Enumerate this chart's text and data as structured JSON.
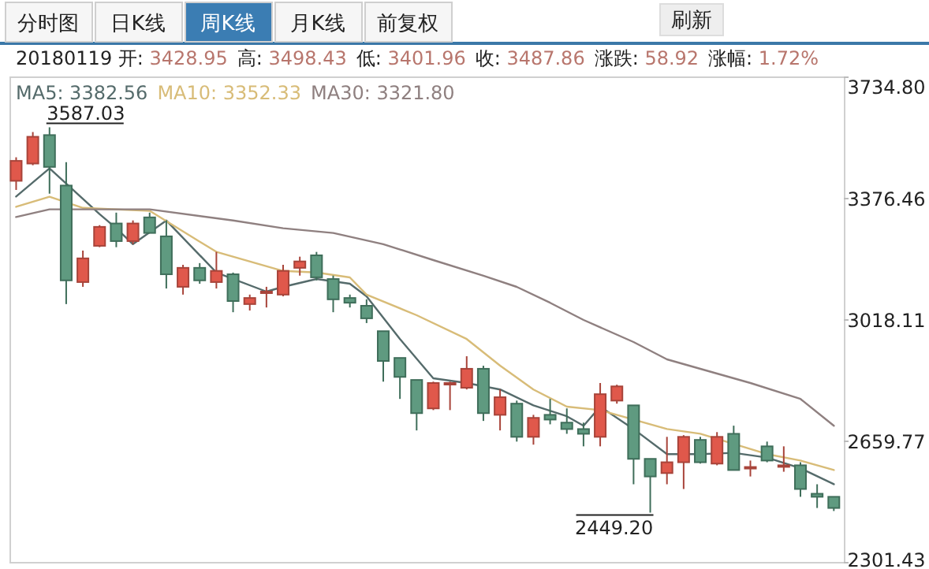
{
  "chart_data": [
    {
      "type": "other",
      "annotations": [
        "分时图",
        "日K线",
        "周K线",
        "月K线",
        "前复权",
        "刷新"
      ]
    },
    {
      "type": "candlestick",
      "categories": [
        null,
        null,
        null,
        null,
        null,
        null,
        null,
        null,
        null,
        null,
        null,
        null,
        null,
        null,
        null,
        null,
        null,
        null,
        null,
        null,
        null,
        null,
        null,
        null,
        null,
        null,
        null,
        null,
        null,
        null,
        null,
        null,
        null,
        null,
        null,
        null,
        null,
        null,
        null,
        null,
        null,
        null,
        null,
        null,
        null,
        null,
        null,
        null,
        null,
        null
      ],
      "ohlc": [
        [
          3428.95,
          3498.43,
          3401.96,
          3487.86
        ],
        [
          3480,
          3573,
          3475,
          3559
        ],
        [
          3564,
          3587.03,
          3391,
          3470
        ],
        [
          3415,
          3484,
          3065,
          3135
        ],
        [
          3130,
          3223,
          3116,
          3200
        ],
        [
          3237,
          3298,
          3233,
          3293
        ],
        [
          3303,
          3335,
          3233,
          3251
        ],
        [
          3251,
          3312,
          3242,
          3303
        ],
        [
          3321,
          3335,
          3275,
          3275
        ],
        [
          3265,
          3312,
          3111,
          3153
        ],
        [
          3116,
          3181,
          3093,
          3172
        ],
        [
          3172,
          3186,
          3125,
          3135
        ],
        [
          3130,
          3219,
          3111,
          3163
        ],
        [
          3153,
          3158,
          3041,
          3074
        ],
        [
          3065,
          3093,
          3046,
          3083
        ],
        [
          3102,
          3116,
          3055,
          3102
        ],
        [
          3093,
          3181,
          3088,
          3163
        ],
        [
          3172,
          3205,
          3149,
          3191
        ],
        [
          3209,
          3219,
          3135,
          3144
        ],
        [
          3139,
          3149,
          3041,
          3079
        ],
        [
          3083,
          3093,
          3055,
          3069
        ],
        [
          3060,
          3079,
          3009,
          3023
        ],
        [
          2985,
          2985,
          2836,
          2897
        ],
        [
          2906,
          2906,
          2785,
          2850
        ],
        [
          2841,
          2841,
          2692,
          2743
        ],
        [
          2757,
          2836,
          2752,
          2832
        ],
        [
          2832,
          2836,
          2752,
          2832
        ],
        [
          2818,
          2911,
          2813,
          2874
        ],
        [
          2874,
          2883,
          2720,
          2743
        ],
        [
          2738,
          2813,
          2692,
          2790
        ],
        [
          2771,
          2780,
          2659,
          2673
        ],
        [
          2673,
          2738,
          2650,
          2729
        ],
        [
          2738,
          2785,
          2710,
          2724
        ],
        [
          2715,
          2757,
          2682,
          2696
        ],
        [
          2696,
          2715,
          2645,
          2682
        ],
        [
          2673,
          2832,
          2645,
          2799
        ],
        [
          2780,
          2827,
          2771,
          2822
        ],
        [
          2766,
          2766,
          2533,
          2608
        ],
        [
          2608,
          2608,
          2449.2,
          2556
        ],
        [
          2566,
          2673,
          2533,
          2598
        ],
        [
          2598,
          2678,
          2519,
          2673
        ],
        [
          2664,
          2673,
          2594,
          2598
        ],
        [
          2594,
          2687,
          2589,
          2673
        ],
        [
          2682,
          2706,
          2575,
          2575
        ],
        [
          2584,
          2603,
          2556,
          2584
        ],
        [
          2645,
          2659,
          2598,
          2603
        ],
        [
          2589,
          2645,
          2570,
          2589
        ],
        [
          2589,
          2598,
          2496,
          2519
        ],
        [
          2505,
          2533,
          2463,
          2496
        ],
        [
          2496,
          2496,
          2454,
          2463
        ]
      ],
      "series": [
        {
          "type": "line",
          "name": "MA5: 3382.56",
          "color": "#556b6b",
          "values": [
            3382.56,
            null,
            3466,
            null,
            null,
            3331,
            3289,
            3242,
            null,
            3312,
            null,
            null,
            3158,
            null,
            null,
            3102,
            3116,
            null,
            3139,
            null,
            3125,
            3088,
            null,
            2962,
            null,
            2846,
            null,
            2832,
            null,
            2813,
            null,
            2766,
            null,
            2734,
            2706,
            2762,
            null,
            2696,
            null,
            2622,
            null,
            2622,
            null,
            2626,
            null,
            2612,
            null,
            2580,
            null,
            2533
          ]
        },
        {
          "type": "line",
          "name": "MA10: 3352.33",
          "color": "#d8bc78",
          "values": [
            3352.33,
            null,
            3382,
            null,
            3349,
            null,
            null,
            null,
            3340,
            null,
            null,
            null,
            3219,
            null,
            null,
            null,
            3163,
            null,
            3158,
            null,
            3144,
            3093,
            null,
            null,
            3032,
            null,
            null,
            2962,
            null,
            2883,
            null,
            2813,
            null,
            2762,
            null,
            2752,
            null,
            null,
            null,
            2696,
            null,
            2682,
            null,
            null,
            null,
            2622,
            null,
            2603,
            null,
            2575
          ]
        },
        {
          "type": "line",
          "name": "MA30: 3321.80",
          "color": "#8f8080",
          "values": [
            3321.8,
            null,
            3345,
            null,
            null,
            null,
            null,
            null,
            3345,
            null,
            null,
            null,
            null,
            3312,
            null,
            null,
            3289,
            null,
            null,
            3275,
            null,
            null,
            3242,
            null,
            null,
            3195,
            null,
            null,
            3149,
            null,
            3116,
            null,
            3069,
            null,
            3018,
            null,
            null,
            2953,
            null,
            2902,
            null,
            null,
            2860,
            null,
            2832,
            null,
            null,
            2785,
            null,
            2706
          ]
        }
      ],
      "ylim": [
        2301.43,
        3734.8
      ],
      "yticks": [
        {
          "value": 3734.8,
          "label": "3734.80"
        },
        {
          "value": 3376.46,
          "label": "3376.46"
        },
        {
          "value": 3018.11,
          "label": "3018.11"
        },
        {
          "value": 2659.77,
          "label": "2659.77"
        },
        {
          "value": 2301.43,
          "label": "2301.43"
        }
      ],
      "tick_labels": "y",
      "grid": false,
      "legend": "top left",
      "annotations": [
        "20180119 开: 3428.95",
        "高: 3498.43",
        "低: 3401.96",
        "收: 3487.86",
        "涨跌: 58.92",
        "涨幅: 1.72%",
        "3587.03",
        "2449.20"
      ]
    }
  ]
}
